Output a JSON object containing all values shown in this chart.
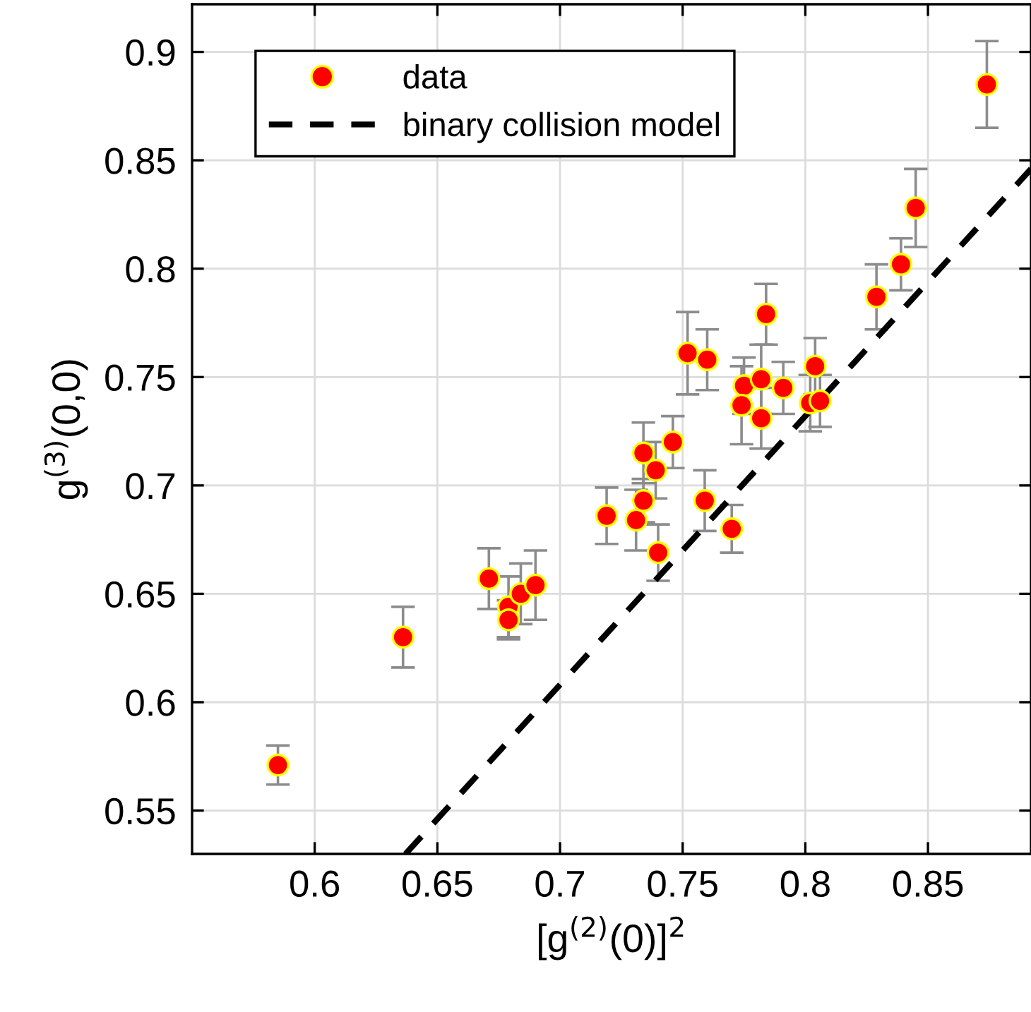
{
  "chart_data": {
    "type": "scatter",
    "xlabel": "[g$^{(2)}$(0)]$^{2}$",
    "ylabel": "g$^{(3)}$(0,0)",
    "xlim": [
      0.55,
      0.892
    ],
    "ylim": [
      0.53,
      0.922
    ],
    "xticks": [
      0.6,
      0.65,
      0.7,
      0.75,
      0.8,
      0.85
    ],
    "yticks": [
      0.55,
      0.6,
      0.65,
      0.7,
      0.75,
      0.8,
      0.85,
      0.9
    ],
    "grid": true,
    "legend": "top left",
    "series": [
      {
        "name": "data",
        "color": "#ff0000",
        "marker": "circle",
        "x": [
          0.585,
          0.636,
          0.671,
          0.679,
          0.679,
          0.684,
          0.69,
          0.719,
          0.731,
          0.734,
          0.734,
          0.739,
          0.746,
          0.74,
          0.752,
          0.76,
          0.759,
          0.77,
          0.775,
          0.774,
          0.782,
          0.782,
          0.784,
          0.791,
          0.802,
          0.804,
          0.806,
          0.829,
          0.839,
          0.845,
          0.874
        ],
        "values": [
          0.571,
          0.63,
          0.657,
          0.644,
          0.638,
          0.65,
          0.654,
          0.686,
          0.684,
          0.693,
          0.715,
          0.707,
          0.72,
          0.669,
          0.761,
          0.758,
          0.693,
          0.68,
          0.746,
          0.737,
          0.749,
          0.731,
          0.779,
          0.745,
          0.738,
          0.755,
          0.739,
          0.787,
          0.802,
          0.828,
          0.885
        ],
        "errors": [
          0.009,
          0.014,
          0.014,
          0.014,
          0.009,
          0.014,
          0.016,
          0.013,
          0.014,
          0.01,
          0.014,
          0.013,
          0.012,
          0.013,
          0.019,
          0.014,
          0.014,
          0.011,
          0.013,
          0.018,
          0.016,
          0.014,
          0.014,
          0.012,
          0.013,
          0.013,
          0.012,
          0.015,
          0.012,
          0.018,
          0.02
        ]
      },
      {
        "name": "binary collision model",
        "type": "line",
        "color": "#000000",
        "marker": "none",
        "line_style": "dashed",
        "x": [
          0.637,
          0.892
        ],
        "values": [
          0.53,
          0.846
        ]
      }
    ]
  }
}
